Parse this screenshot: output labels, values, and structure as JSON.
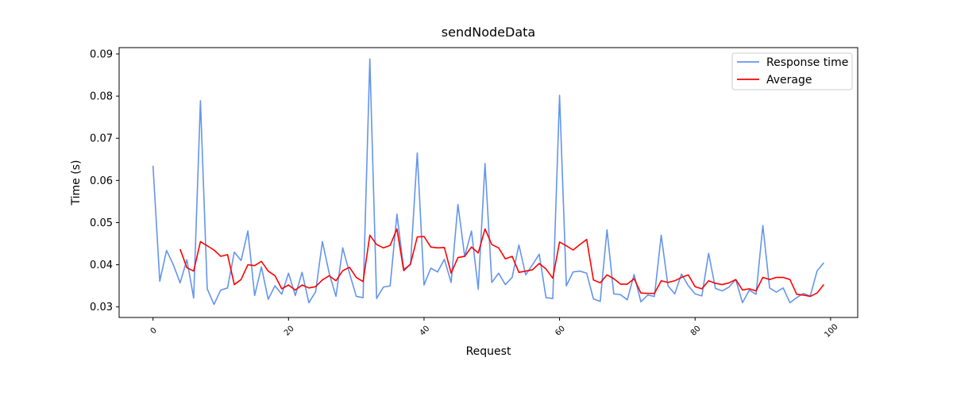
{
  "chart_data": {
    "type": "line",
    "title": "sendNodeData",
    "xlabel": "Request",
    "ylabel": "Time (s)",
    "xlim": [
      -5,
      104
    ],
    "ylim": [
      0.0275,
      0.0915
    ],
    "xticks": [
      0,
      20,
      40,
      60,
      80,
      100
    ],
    "yticks": [
      0.03,
      0.04,
      0.05,
      0.06,
      0.07,
      0.08,
      0.09
    ],
    "ytick_labels": [
      "0.03",
      "0.04",
      "0.05",
      "0.06",
      "0.07",
      "0.08",
      "0.09"
    ],
    "grid": false,
    "legend": "top-right",
    "series": [
      {
        "name": "Response time",
        "color": "#6495ED",
        "start_x": 0,
        "values": [
          0.0635,
          0.0361,
          0.0434,
          0.04,
          0.0357,
          0.0412,
          0.0321,
          0.0789,
          0.0343,
          0.0306,
          0.034,
          0.0345,
          0.043,
          0.041,
          0.048,
          0.0327,
          0.0395,
          0.0318,
          0.035,
          0.033,
          0.038,
          0.0327,
          0.0382,
          0.031,
          0.0336,
          0.0455,
          0.038,
          0.0325,
          0.044,
          0.038,
          0.0325,
          0.0322,
          0.0888,
          0.032,
          0.0347,
          0.035,
          0.052,
          0.039,
          0.04,
          0.0665,
          0.0352,
          0.0392,
          0.0383,
          0.0413,
          0.0358,
          0.0543,
          0.042,
          0.048,
          0.0342,
          0.064,
          0.0358,
          0.038,
          0.0353,
          0.037,
          0.0447,
          0.0376,
          0.04,
          0.0425,
          0.0322,
          0.032,
          0.0802,
          0.035,
          0.0383,
          0.0385,
          0.038,
          0.0319,
          0.0313,
          0.0483,
          0.0331,
          0.0329,
          0.0317,
          0.0377,
          0.0312,
          0.0328,
          0.0325,
          0.047,
          0.035,
          0.0331,
          0.0378,
          0.035,
          0.0331,
          0.0326,
          0.0427,
          0.0344,
          0.0338,
          0.0347,
          0.0365,
          0.031,
          0.034,
          0.033,
          0.0493,
          0.0345,
          0.0335,
          0.0345,
          0.031,
          0.0322,
          0.0332,
          0.0326,
          0.0385,
          0.0405
        ]
      },
      {
        "name": "Average",
        "color": "#ff0000",
        "start_x": 4,
        "values": [
          0.0437,
          0.0393,
          0.0385,
          0.0455,
          0.0445,
          0.0435,
          0.042,
          0.0424,
          0.0353,
          0.0365,
          0.04,
          0.0398,
          0.0408,
          0.0385,
          0.0374,
          0.0343,
          0.0352,
          0.034,
          0.0352,
          0.0345,
          0.0348,
          0.0364,
          0.0374,
          0.0362,
          0.0386,
          0.0394,
          0.037,
          0.036,
          0.047,
          0.0448,
          0.044,
          0.0446,
          0.0485,
          0.0386,
          0.0402,
          0.0466,
          0.0467,
          0.0442,
          0.044,
          0.0441,
          0.038,
          0.0417,
          0.042,
          0.0442,
          0.0428,
          0.0485,
          0.0448,
          0.044,
          0.0414,
          0.042,
          0.0382,
          0.0385,
          0.0388,
          0.0403,
          0.039,
          0.0368,
          0.0454,
          0.0445,
          0.0435,
          0.0448,
          0.046,
          0.0364,
          0.0357,
          0.0376,
          0.0367,
          0.0354,
          0.0354,
          0.0367,
          0.0333,
          0.0332,
          0.0332,
          0.0362,
          0.0358,
          0.0362,
          0.037,
          0.0376,
          0.0348,
          0.0343,
          0.0362,
          0.0356,
          0.0353,
          0.0357,
          0.0365,
          0.034,
          0.0343,
          0.0338,
          0.037,
          0.0365,
          0.037,
          0.037,
          0.0365,
          0.033,
          0.0328,
          0.0325,
          0.0333,
          0.0353
        ]
      }
    ]
  }
}
